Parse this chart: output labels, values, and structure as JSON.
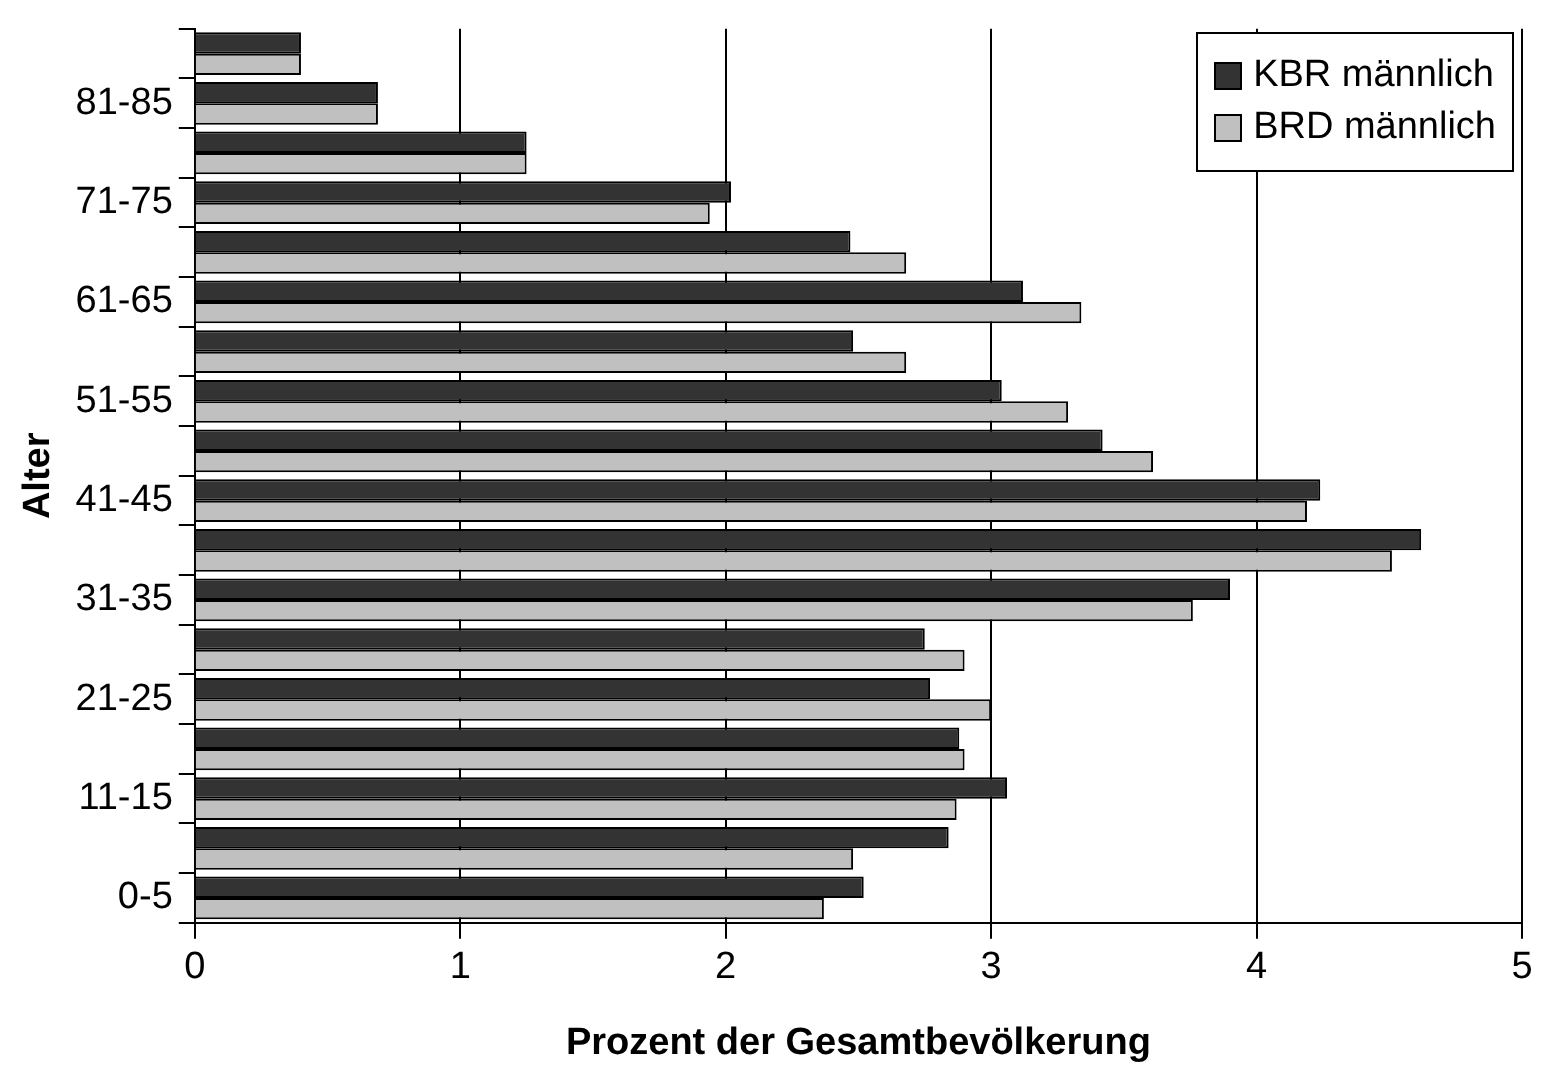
{
  "chart_data": {
    "type": "bar",
    "orientation": "horizontal",
    "xlabel": "Prozent der Gesamtbevölkerung",
    "ylabel": "Alter",
    "categories": [
      null,
      "81-85",
      null,
      "71-75",
      null,
      "61-65",
      null,
      "51-55",
      null,
      "41-45",
      null,
      "31-35",
      null,
      "21-25",
      null,
      "11-15",
      null,
      "0-5"
    ],
    "series": [
      {
        "name": "KBR männlich",
        "color": "#333333",
        "values": [
          0.4,
          0.69,
          1.25,
          2.02,
          2.47,
          3.12,
          2.48,
          3.04,
          3.42,
          4.24,
          4.62,
          3.9,
          2.75,
          2.77,
          2.88,
          3.06,
          2.84,
          2.52
        ]
      },
      {
        "name": "BRD männlich",
        "color": "#c0c0c0",
        "values": [
          0.4,
          0.69,
          1.25,
          1.94,
          2.68,
          3.34,
          2.68,
          3.29,
          3.61,
          4.19,
          4.51,
          3.76,
          2.9,
          3.0,
          2.9,
          2.87,
          2.48,
          2.37
        ]
      }
    ],
    "xlim": [
      0,
      5
    ],
    "xticks": [
      0,
      1,
      2,
      3,
      4,
      5
    ],
    "grid": "x",
    "legend": "top right"
  }
}
